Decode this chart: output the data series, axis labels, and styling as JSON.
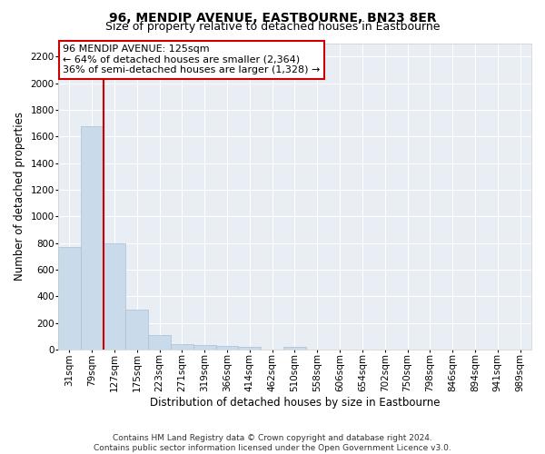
{
  "title": "96, MENDIP AVENUE, EASTBOURNE, BN23 8ER",
  "subtitle": "Size of property relative to detached houses in Eastbourne",
  "xlabel": "Distribution of detached houses by size in Eastbourne",
  "ylabel": "Number of detached properties",
  "bar_values": [
    770,
    1680,
    800,
    300,
    110,
    45,
    32,
    25,
    22,
    0,
    22,
    0,
    0,
    0,
    0,
    0,
    0,
    0,
    0,
    0,
    0
  ],
  "categories": [
    "31sqm",
    "79sqm",
    "127sqm",
    "175sqm",
    "223sqm",
    "271sqm",
    "319sqm",
    "366sqm",
    "414sqm",
    "462sqm",
    "510sqm",
    "558sqm",
    "606sqm",
    "654sqm",
    "702sqm",
    "750sqm",
    "798sqm",
    "846sqm",
    "894sqm",
    "941sqm",
    "989sqm"
  ],
  "bar_color": "#c9daea",
  "bar_edge_color": "#aac0d2",
  "vline_x_index": 2,
  "vline_color": "#cc0000",
  "annotation_text": "96 MENDIP AVENUE: 125sqm\n← 64% of detached houses are smaller (2,364)\n36% of semi-detached houses are larger (1,328) →",
  "annotation_box_color": "#ffffff",
  "annotation_box_edge": "#cc0000",
  "ylim": [
    0,
    2300
  ],
  "yticks": [
    0,
    200,
    400,
    600,
    800,
    1000,
    1200,
    1400,
    1600,
    1800,
    2000,
    2200
  ],
  "bg_color": "#e8eef4",
  "footer": "Contains HM Land Registry data © Crown copyright and database right 2024.\nContains public sector information licensed under the Open Government Licence v3.0.",
  "title_fontsize": 10,
  "subtitle_fontsize": 9,
  "xlabel_fontsize": 8.5,
  "ylabel_fontsize": 8.5,
  "footer_fontsize": 6.5,
  "tick_fontsize": 7.5,
  "annotation_fontsize": 8
}
